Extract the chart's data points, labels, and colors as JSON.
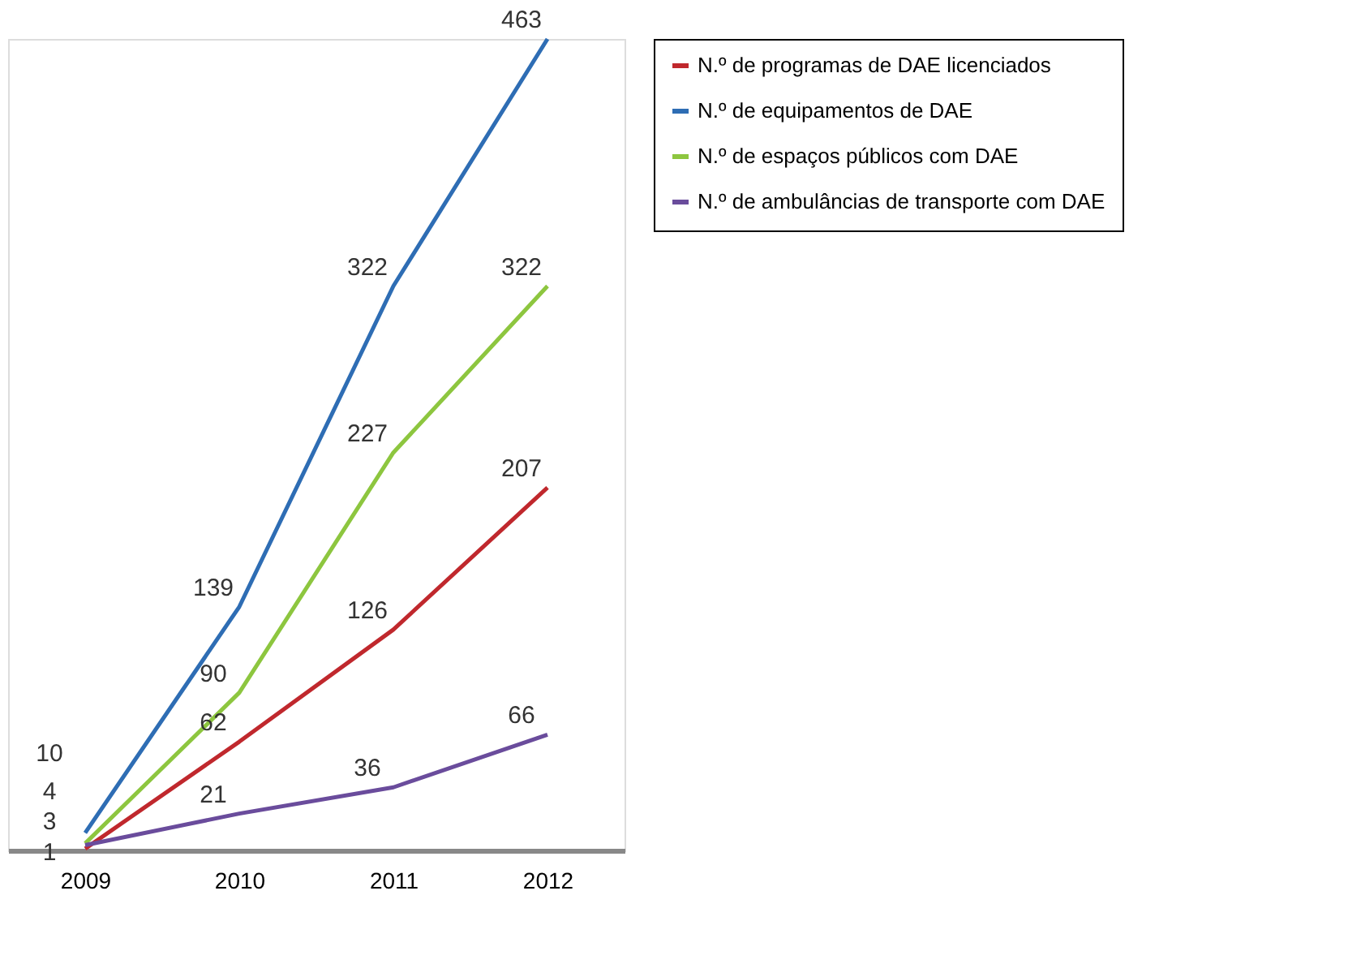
{
  "chart_data": {
    "type": "line",
    "categories": [
      "2009",
      "2010",
      "2011",
      "2012"
    ],
    "series": [
      {
        "name": "N.º de programas de DAE licenciados",
        "color": "#c0282d",
        "values": [
          1,
          62,
          126,
          207
        ]
      },
      {
        "name": "N.º de equipamentos de DAE",
        "color": "#2e6db4",
        "values": [
          10,
          139,
          322,
          463
        ]
      },
      {
        "name": "N.º de espaços públicos com DAE",
        "color": "#8dc63f",
        "values": [
          4,
          90,
          227,
          322
        ]
      },
      {
        "name": "N.º de ambulâncias de transporte com DAE",
        "color": "#6a4c9c",
        "values": [
          3,
          21,
          36,
          66
        ]
      }
    ],
    "data_labels": true,
    "legend": "right",
    "grid": false,
    "marker": "none",
    "line_style": "solid"
  }
}
